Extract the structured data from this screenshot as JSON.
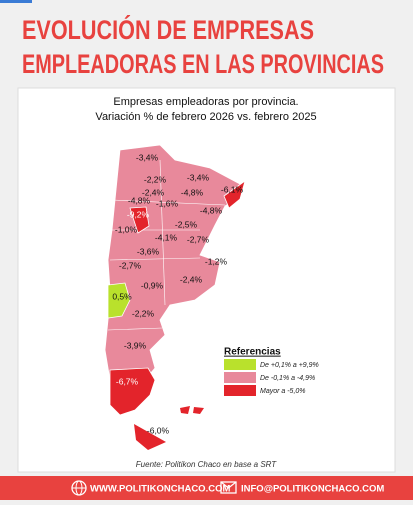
{
  "header": {
    "title_lines": [
      "EVOLUCIÓN DE EMPRESAS",
      "EMPLEADORAS EN LAS PROVINCIAS"
    ]
  },
  "subtitle_lines": [
    "Empresas empleadoras por provincia.",
    "Variación % de febrero 2026 vs. febrero 2025"
  ],
  "map": {
    "labels": [
      "-3,4%",
      "-3,4%",
      "-2,2%",
      "-6,1%",
      "-2,4%",
      "-4,8%",
      "-4,8%",
      "-1,6%",
      "-9,2%",
      "-4,8%",
      "-1,0%",
      "-2,5%",
      "-4,1%",
      "-2,7%",
      "-3,6%",
      "-1,2%",
      "-2,7%",
      "-0,9%",
      "-2,4%",
      "0,5%",
      "-2,2%",
      "-3,9%",
      "-6,7%",
      "-6,0%"
    ]
  },
  "legend": {
    "title": "Referencias",
    "items": [
      {
        "label": "De +0,1% a +9,9%",
        "color": "#b9e12c"
      },
      {
        "label": "De -0,1% a -4,9%",
        "color": "#e8899b"
      },
      {
        "label": "Mayor a -5,0%",
        "color": "#e3242b"
      }
    ]
  },
  "source": "Fuente: Politikon Chaco en base a SRT",
  "footer": {
    "website": "WWW.POLITIKONCHACO.COM",
    "email": "INFO@POLITIKONCHACO.COM"
  }
}
